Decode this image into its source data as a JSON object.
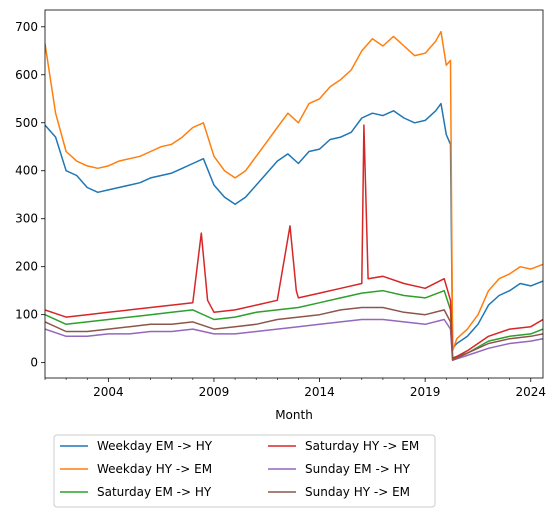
{
  "chart_data": {
    "type": "line",
    "xlabel": "Month",
    "ylabel": "",
    "xlim": [
      2001.0,
      2024.58
    ],
    "ylim": [
      -32,
      735
    ],
    "grid": false,
    "legend_placement": "bottom-center (below plot), 2 columns",
    "x_ticks": [
      {
        "value": 2004,
        "label": "2004"
      },
      {
        "value": 2009,
        "label": "2009"
      },
      {
        "value": 2014,
        "label": "2014"
      },
      {
        "value": 2019,
        "label": "2019"
      },
      {
        "value": 2024,
        "label": "2024"
      }
    ],
    "y_ticks": [
      {
        "value": 0,
        "label": "0"
      },
      {
        "value": 100,
        "label": "100"
      },
      {
        "value": 200,
        "label": "200"
      },
      {
        "value": 300,
        "label": "300"
      },
      {
        "value": 400,
        "label": "400"
      },
      {
        "value": 500,
        "label": "500"
      },
      {
        "value": 600,
        "label": "600"
      },
      {
        "value": 700,
        "label": "700"
      }
    ],
    "series": [
      {
        "name": "Weekday EM -> HY",
        "color": "#1f77b4",
        "points": [
          [
            2001.0,
            495
          ],
          [
            2001.5,
            470
          ],
          [
            2002.0,
            400
          ],
          [
            2002.5,
            390
          ],
          [
            2003.0,
            365
          ],
          [
            2003.5,
            355
          ],
          [
            2004.0,
            360
          ],
          [
            2004.5,
            365
          ],
          [
            2005.0,
            370
          ],
          [
            2005.5,
            375
          ],
          [
            2006.0,
            385
          ],
          [
            2006.5,
            390
          ],
          [
            2007.0,
            395
          ],
          [
            2007.5,
            405
          ],
          [
            2008.0,
            415
          ],
          [
            2008.5,
            425
          ],
          [
            2009.0,
            370
          ],
          [
            2009.5,
            345
          ],
          [
            2010.0,
            330
          ],
          [
            2010.5,
            345
          ],
          [
            2011.0,
            370
          ],
          [
            2011.5,
            395
          ],
          [
            2012.0,
            420
          ],
          [
            2012.5,
            435
          ],
          [
            2013.0,
            415
          ],
          [
            2013.5,
            440
          ],
          [
            2014.0,
            445
          ],
          [
            2014.5,
            465
          ],
          [
            2015.0,
            470
          ],
          [
            2015.5,
            480
          ],
          [
            2016.0,
            510
          ],
          [
            2016.5,
            520
          ],
          [
            2017.0,
            515
          ],
          [
            2017.5,
            525
          ],
          [
            2018.0,
            510
          ],
          [
            2018.5,
            500
          ],
          [
            2019.0,
            505
          ],
          [
            2019.5,
            525
          ],
          [
            2019.75,
            540
          ],
          [
            2020.0,
            475
          ],
          [
            2020.2,
            455
          ],
          [
            2020.3,
            30
          ],
          [
            2020.5,
            40
          ],
          [
            2021.0,
            55
          ],
          [
            2021.5,
            80
          ],
          [
            2022.0,
            120
          ],
          [
            2022.5,
            140
          ],
          [
            2023.0,
            150
          ],
          [
            2023.5,
            165
          ],
          [
            2024.0,
            160
          ],
          [
            2024.58,
            170
          ]
        ]
      },
      {
        "name": "Weekday HY -> EM",
        "color": "#ff7f0e",
        "points": [
          [
            2001.0,
            665
          ],
          [
            2001.5,
            520
          ],
          [
            2002.0,
            440
          ],
          [
            2002.5,
            420
          ],
          [
            2003.0,
            410
          ],
          [
            2003.5,
            405
          ],
          [
            2004.0,
            410
          ],
          [
            2004.5,
            420
          ],
          [
            2005.0,
            425
          ],
          [
            2005.5,
            430
          ],
          [
            2006.0,
            440
          ],
          [
            2006.5,
            450
          ],
          [
            2007.0,
            455
          ],
          [
            2007.5,
            470
          ],
          [
            2008.0,
            490
          ],
          [
            2008.5,
            500
          ],
          [
            2009.0,
            430
          ],
          [
            2009.5,
            400
          ],
          [
            2010.0,
            385
          ],
          [
            2010.5,
            400
          ],
          [
            2011.0,
            430
          ],
          [
            2011.5,
            460
          ],
          [
            2012.0,
            490
          ],
          [
            2012.5,
            520
          ],
          [
            2013.0,
            500
          ],
          [
            2013.5,
            540
          ],
          [
            2014.0,
            550
          ],
          [
            2014.5,
            575
          ],
          [
            2015.0,
            590
          ],
          [
            2015.5,
            610
          ],
          [
            2016.0,
            650
          ],
          [
            2016.5,
            675
          ],
          [
            2017.0,
            660
          ],
          [
            2017.5,
            680
          ],
          [
            2018.0,
            660
          ],
          [
            2018.5,
            640
          ],
          [
            2019.0,
            645
          ],
          [
            2019.5,
            670
          ],
          [
            2019.75,
            690
          ],
          [
            2020.0,
            620
          ],
          [
            2020.2,
            630
          ],
          [
            2020.3,
            25
          ],
          [
            2020.5,
            50
          ],
          [
            2021.0,
            70
          ],
          [
            2021.5,
            100
          ],
          [
            2022.0,
            150
          ],
          [
            2022.5,
            175
          ],
          [
            2023.0,
            185
          ],
          [
            2023.5,
            200
          ],
          [
            2024.0,
            195
          ],
          [
            2024.58,
            205
          ]
        ]
      },
      {
        "name": "Saturday EM -> HY",
        "color": "#2ca02c",
        "points": [
          [
            2001.0,
            100
          ],
          [
            2002.0,
            80
          ],
          [
            2003.0,
            85
          ],
          [
            2004.0,
            90
          ],
          [
            2005.0,
            95
          ],
          [
            2006.0,
            100
          ],
          [
            2007.0,
            105
          ],
          [
            2008.0,
            110
          ],
          [
            2009.0,
            90
          ],
          [
            2010.0,
            95
          ],
          [
            2011.0,
            105
          ],
          [
            2012.0,
            110
          ],
          [
            2013.0,
            115
          ],
          [
            2014.0,
            125
          ],
          [
            2015.0,
            135
          ],
          [
            2016.0,
            145
          ],
          [
            2017.0,
            150
          ],
          [
            2018.0,
            140
          ],
          [
            2019.0,
            135
          ],
          [
            2019.9,
            150
          ],
          [
            2020.2,
            110
          ],
          [
            2020.3,
            10
          ],
          [
            2021.0,
            20
          ],
          [
            2022.0,
            45
          ],
          [
            2023.0,
            55
          ],
          [
            2024.0,
            60
          ],
          [
            2024.58,
            70
          ]
        ]
      },
      {
        "name": "Saturday HY -> EM",
        "color": "#d62728",
        "points": [
          [
            2001.0,
            110
          ],
          [
            2002.0,
            95
          ],
          [
            2003.0,
            100
          ],
          [
            2004.0,
            105
          ],
          [
            2005.0,
            110
          ],
          [
            2006.0,
            115
          ],
          [
            2007.0,
            120
          ],
          [
            2008.0,
            125
          ],
          [
            2008.4,
            270
          ],
          [
            2008.7,
            130
          ],
          [
            2009.0,
            105
          ],
          [
            2010.0,
            110
          ],
          [
            2011.0,
            120
          ],
          [
            2012.0,
            130
          ],
          [
            2012.6,
            285
          ],
          [
            2012.9,
            150
          ],
          [
            2013.0,
            135
          ],
          [
            2014.0,
            145
          ],
          [
            2015.0,
            155
          ],
          [
            2016.0,
            165
          ],
          [
            2016.1,
            495
          ],
          [
            2016.3,
            175
          ],
          [
            2017.0,
            180
          ],
          [
            2018.0,
            165
          ],
          [
            2019.0,
            155
          ],
          [
            2019.9,
            175
          ],
          [
            2020.2,
            130
          ],
          [
            2020.3,
            8
          ],
          [
            2021.0,
            25
          ],
          [
            2022.0,
            55
          ],
          [
            2023.0,
            70
          ],
          [
            2024.0,
            75
          ],
          [
            2024.58,
            90
          ]
        ]
      },
      {
        "name": "Sunday EM -> HY",
        "color": "#9467bd",
        "points": [
          [
            2001.0,
            70
          ],
          [
            2002.0,
            55
          ],
          [
            2003.0,
            55
          ],
          [
            2004.0,
            60
          ],
          [
            2005.0,
            60
          ],
          [
            2006.0,
            65
          ],
          [
            2007.0,
            65
          ],
          [
            2008.0,
            70
          ],
          [
            2009.0,
            60
          ],
          [
            2010.0,
            60
          ],
          [
            2011.0,
            65
          ],
          [
            2012.0,
            70
          ],
          [
            2013.0,
            75
          ],
          [
            2014.0,
            80
          ],
          [
            2015.0,
            85
          ],
          [
            2016.0,
            90
          ],
          [
            2017.0,
            90
          ],
          [
            2018.0,
            85
          ],
          [
            2019.0,
            80
          ],
          [
            2019.9,
            90
          ],
          [
            2020.2,
            70
          ],
          [
            2020.3,
            5
          ],
          [
            2021.0,
            15
          ],
          [
            2022.0,
            30
          ],
          [
            2023.0,
            40
          ],
          [
            2024.0,
            45
          ],
          [
            2024.58,
            50
          ]
        ]
      },
      {
        "name": "Sunday HY -> EM",
        "color": "#8c564b",
        "points": [
          [
            2001.0,
            85
          ],
          [
            2002.0,
            65
          ],
          [
            2003.0,
            65
          ],
          [
            2004.0,
            70
          ],
          [
            2005.0,
            75
          ],
          [
            2006.0,
            80
          ],
          [
            2007.0,
            80
          ],
          [
            2008.0,
            85
          ],
          [
            2009.0,
            70
          ],
          [
            2010.0,
            75
          ],
          [
            2011.0,
            80
          ],
          [
            2012.0,
            90
          ],
          [
            2013.0,
            95
          ],
          [
            2014.0,
            100
          ],
          [
            2015.0,
            110
          ],
          [
            2016.0,
            115
          ],
          [
            2017.0,
            115
          ],
          [
            2018.0,
            105
          ],
          [
            2019.0,
            100
          ],
          [
            2019.9,
            110
          ],
          [
            2020.2,
            85
          ],
          [
            2020.3,
            5
          ],
          [
            2021.0,
            20
          ],
          [
            2022.0,
            40
          ],
          [
            2023.0,
            50
          ],
          [
            2024.0,
            55
          ],
          [
            2024.58,
            60
          ]
        ]
      }
    ]
  }
}
